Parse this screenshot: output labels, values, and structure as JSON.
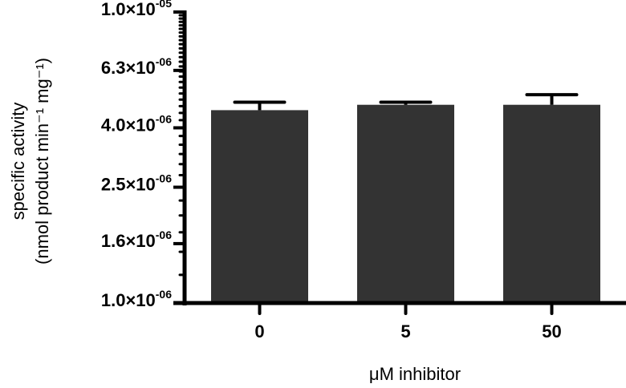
{
  "chart_data": {
    "type": "bar",
    "title": "",
    "xlabel": "μM inhibitor",
    "ylabel_line1": "specific activity",
    "ylabel_line2": "(nmol product  min⁻¹ mg⁻¹)",
    "yscale": "log",
    "ylim": [
      1e-06,
      1e-05
    ],
    "grid": false,
    "legend": null,
    "categories": [
      "0",
      "5",
      "50"
    ],
    "values": [
      4.6e-06,
      4.8e-06,
      4.8e-06
    ],
    "error_upper": [
      4.9e-06,
      4.9e-06,
      5.2e-06
    ],
    "bar_color": "#333333",
    "y_ticks": [
      {
        "value": 1e-05,
        "mantissa": "1.0×10",
        "exp": "-05"
      },
      {
        "value": 6.3e-06,
        "mantissa": "6.3×10",
        "exp": "-06"
      },
      {
        "value": 4e-06,
        "mantissa": "4.0×10",
        "exp": "-06"
      },
      {
        "value": 2.5e-06,
        "mantissa": "2.5×10",
        "exp": "-06"
      },
      {
        "value": 1.6e-06,
        "mantissa": "1.6×10",
        "exp": "-06"
      },
      {
        "value": 1e-06,
        "mantissa": "1.0×10",
        "exp": "-06"
      }
    ]
  }
}
